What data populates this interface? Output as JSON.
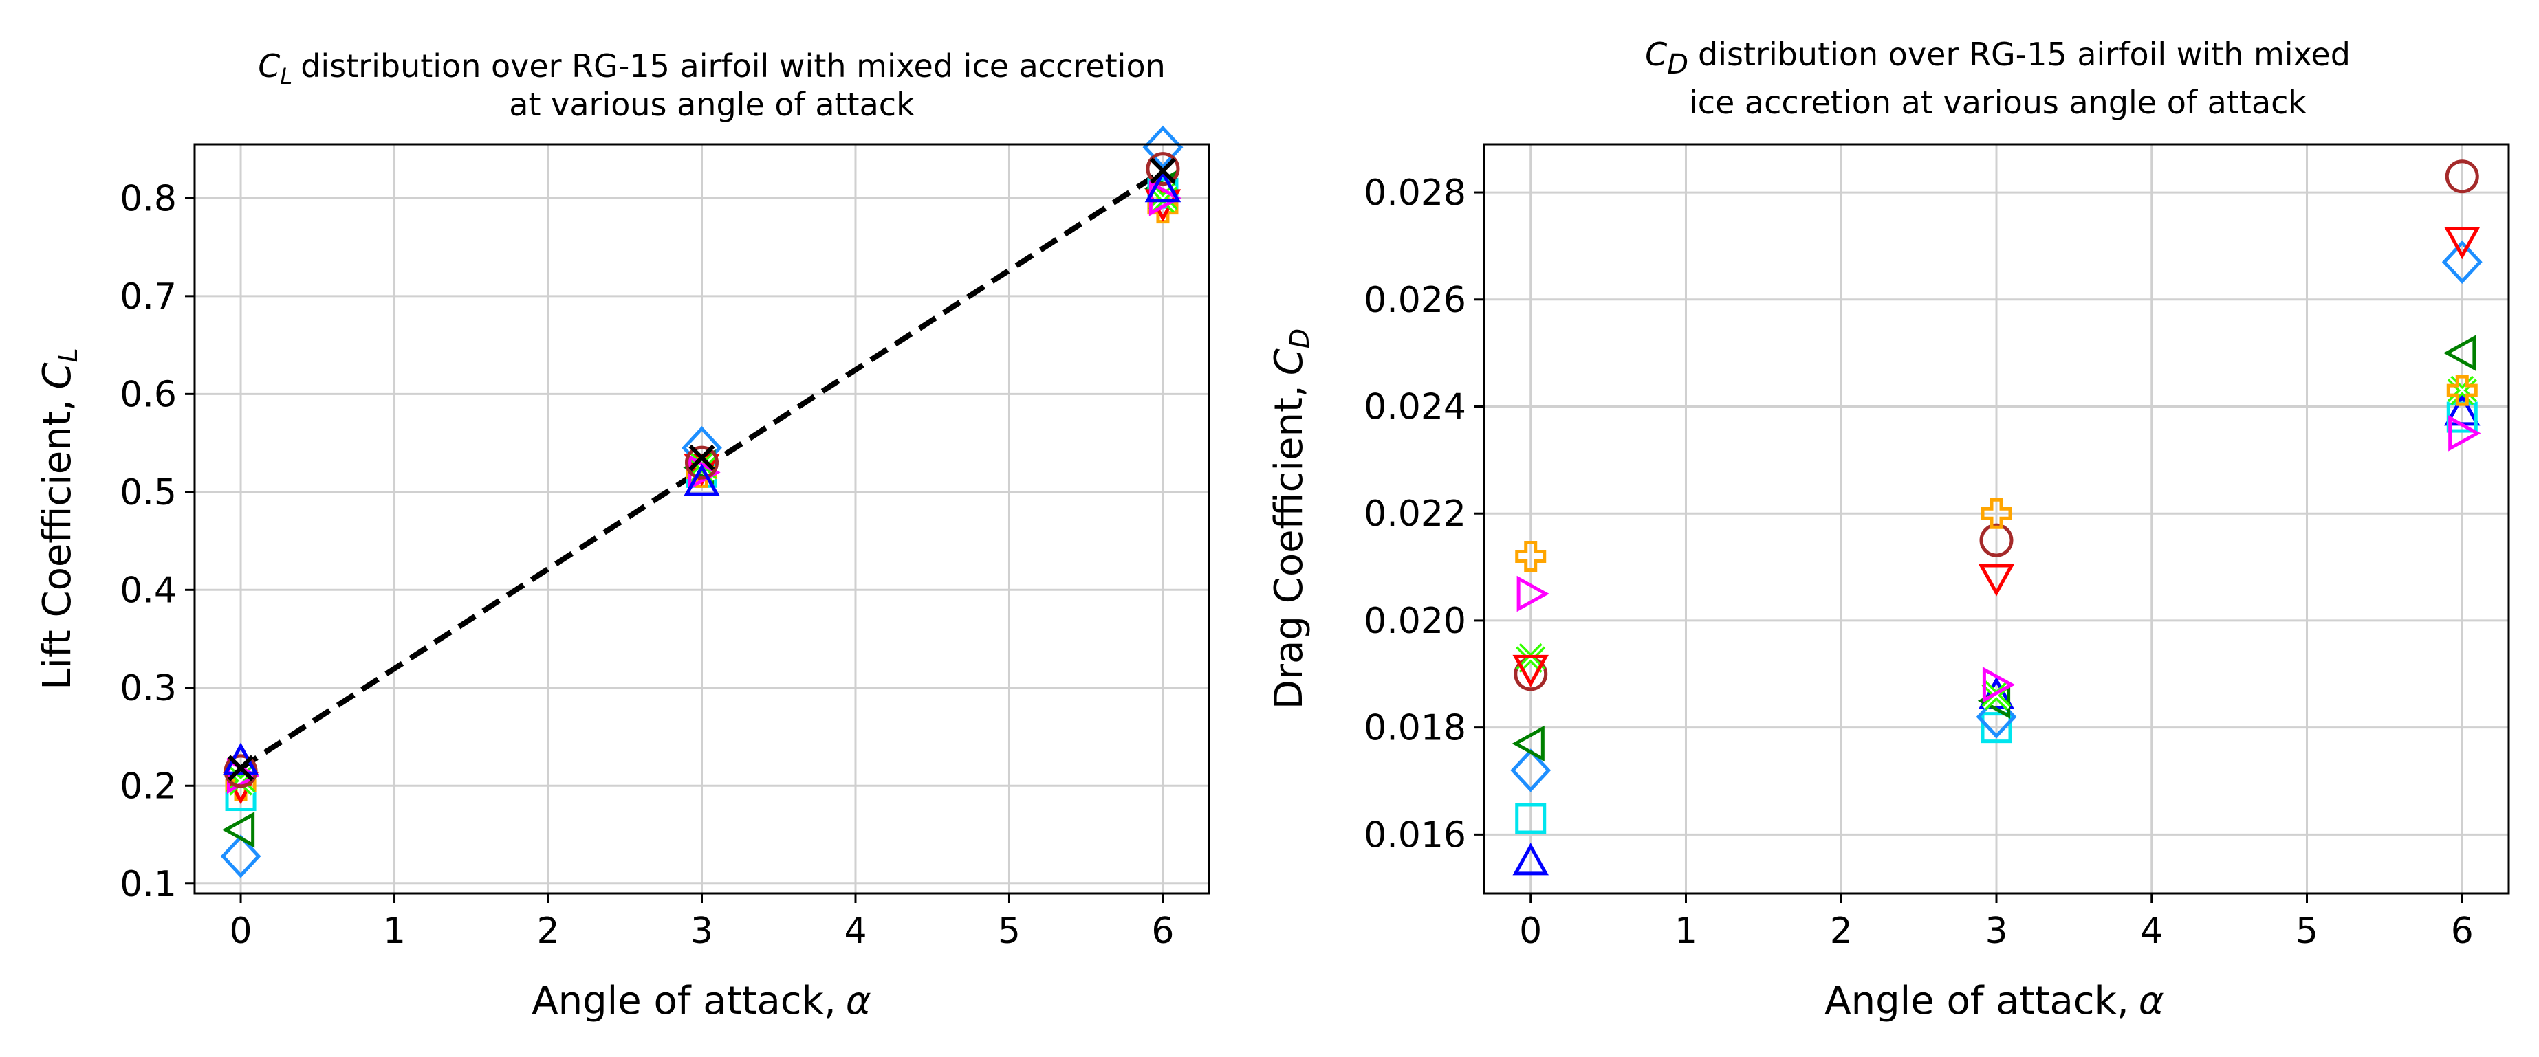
{
  "figure": "Lift and drag coefficient distributions over RG-15 airfoil",
  "chart_data": [
    {
      "type": "scatter",
      "id": "cl",
      "title_main": "distribution over RG-15 airfoil with mixed ice accretion",
      "title_line2": "at various angle of attack",
      "title_symbol": "C",
      "title_subscript": "L",
      "xlabel": "Angle of attack,",
      "xlabel_symbol": "α",
      "ylabel": "Lift Coefficient,",
      "ylabel_symbol": "C",
      "ylabel_subscript": "L",
      "xlim": [
        -0.3,
        6.3
      ],
      "ylim": [
        0.09,
        0.855
      ],
      "xticks": [
        0,
        1,
        2,
        3,
        4,
        5,
        6
      ],
      "xtick_labels": [
        "0",
        "1",
        "2",
        "3",
        "4",
        "5",
        "6"
      ],
      "yticks": [
        0.1,
        0.2,
        0.3,
        0.4,
        0.5,
        0.6,
        0.7,
        0.8
      ],
      "ytick_labels": [
        "0.1",
        "0.2",
        "0.3",
        "0.4",
        "0.5",
        "0.6",
        "0.7",
        "0.8"
      ],
      "grid": true,
      "fit_line": {
        "x": [
          0,
          6
        ],
        "y": [
          0.218,
          0.828
        ],
        "style": "dashed",
        "color": "#000000"
      },
      "series": [
        {
          "marker": "diamond",
          "color": "#1e8fff",
          "x": [
            0,
            3,
            6
          ],
          "y": [
            0.128,
            0.545,
            0.852
          ]
        },
        {
          "marker": "triangle-left",
          "color": "#008000",
          "x": [
            0,
            3,
            6
          ],
          "y": [
            0.155,
            0.525,
            0.81
          ]
        },
        {
          "marker": "square",
          "color": "#00e5ee",
          "x": [
            0,
            3,
            6
          ],
          "y": [
            0.19,
            0.52,
            0.805
          ]
        },
        {
          "marker": "plus",
          "color": "#ffa500",
          "x": [
            0,
            3,
            6
          ],
          "y": [
            0.2,
            0.52,
            0.79
          ]
        },
        {
          "marker": "triangle-down",
          "color": "#ff0000",
          "x": [
            0,
            3,
            6
          ],
          "y": [
            0.2,
            0.525,
            0.795
          ]
        },
        {
          "marker": "x-thick",
          "color": "#33ff00",
          "x": [
            0,
            3,
            6
          ],
          "y": [
            0.205,
            0.525,
            0.8
          ]
        },
        {
          "marker": "triangle-right",
          "color": "#ff00ff",
          "x": [
            0,
            3,
            6
          ],
          "y": [
            0.21,
            0.52,
            0.8
          ]
        },
        {
          "marker": "circle",
          "color": "#a52a2a",
          "x": [
            0,
            3,
            6
          ],
          "y": [
            0.215,
            0.53,
            0.83
          ]
        },
        {
          "marker": "triangle-up",
          "color": "#0000ff",
          "x": [
            0,
            3,
            6
          ],
          "y": [
            0.225,
            0.51,
            0.81
          ]
        },
        {
          "marker": "x",
          "color": "#000000",
          "x": [
            0,
            3,
            6
          ],
          "y": [
            0.218,
            0.535,
            0.828
          ]
        }
      ]
    },
    {
      "type": "scatter",
      "id": "cd",
      "title_main": "distribution over RG-15 airfoil with mixed",
      "title_line2": "ice accretion at various angle of attack",
      "title_symbol": "C",
      "title_subscript": "D",
      "xlabel": "Angle of attack,",
      "xlabel_symbol": "α",
      "ylabel": "Drag Coefficient,",
      "ylabel_symbol": "C",
      "ylabel_subscript": "D",
      "xlim": [
        -0.3,
        6.3
      ],
      "ylim": [
        0.0149,
        0.0289
      ],
      "xticks": [
        0,
        1,
        2,
        3,
        4,
        5,
        6
      ],
      "xtick_labels": [
        "0",
        "1",
        "2",
        "3",
        "4",
        "5",
        "6"
      ],
      "yticks": [
        0.016,
        0.018,
        0.02,
        0.022,
        0.024,
        0.026,
        0.028
      ],
      "ytick_labels": [
        "0.016",
        "0.018",
        "0.020",
        "0.022",
        "0.024",
        "0.026",
        "0.028"
      ],
      "grid": true,
      "series": [
        {
          "marker": "triangle-up",
          "color": "#0000ff",
          "x": [
            0,
            3,
            6
          ],
          "y": [
            0.0155,
            0.0186,
            0.0239
          ]
        },
        {
          "marker": "square",
          "color": "#00e5ee",
          "x": [
            0,
            3,
            6
          ],
          "y": [
            0.0163,
            0.018,
            0.0238
          ]
        },
        {
          "marker": "diamond",
          "color": "#1e8fff",
          "x": [
            0,
            3,
            6
          ],
          "y": [
            0.0172,
            0.0182,
            0.0267
          ]
        },
        {
          "marker": "triangle-left",
          "color": "#008000",
          "x": [
            0,
            3,
            6
          ],
          "y": [
            0.0177,
            0.0185,
            0.025
          ]
        },
        {
          "marker": "circle",
          "color": "#a52a2a",
          "x": [
            0,
            3,
            6
          ],
          "y": [
            0.019,
            0.0215,
            0.0283
          ]
        },
        {
          "marker": "x-thick",
          "color": "#33ff00",
          "x": [
            0,
            3,
            6
          ],
          "y": [
            0.0193,
            0.0186,
            0.0243
          ]
        },
        {
          "marker": "triangle-right",
          "color": "#ff00ff",
          "x": [
            0,
            3,
            6
          ],
          "y": [
            0.0205,
            0.0188,
            0.0235
          ]
        },
        {
          "marker": "triangle-down",
          "color": "#ff0000",
          "x": [
            0,
            3,
            6
          ],
          "y": [
            0.0191,
            0.0208,
            0.0271
          ]
        },
        {
          "marker": "plus",
          "color": "#ffa500",
          "x": [
            0,
            3,
            6
          ],
          "y": [
            0.0212,
            0.022,
            0.0243
          ]
        }
      ]
    }
  ]
}
